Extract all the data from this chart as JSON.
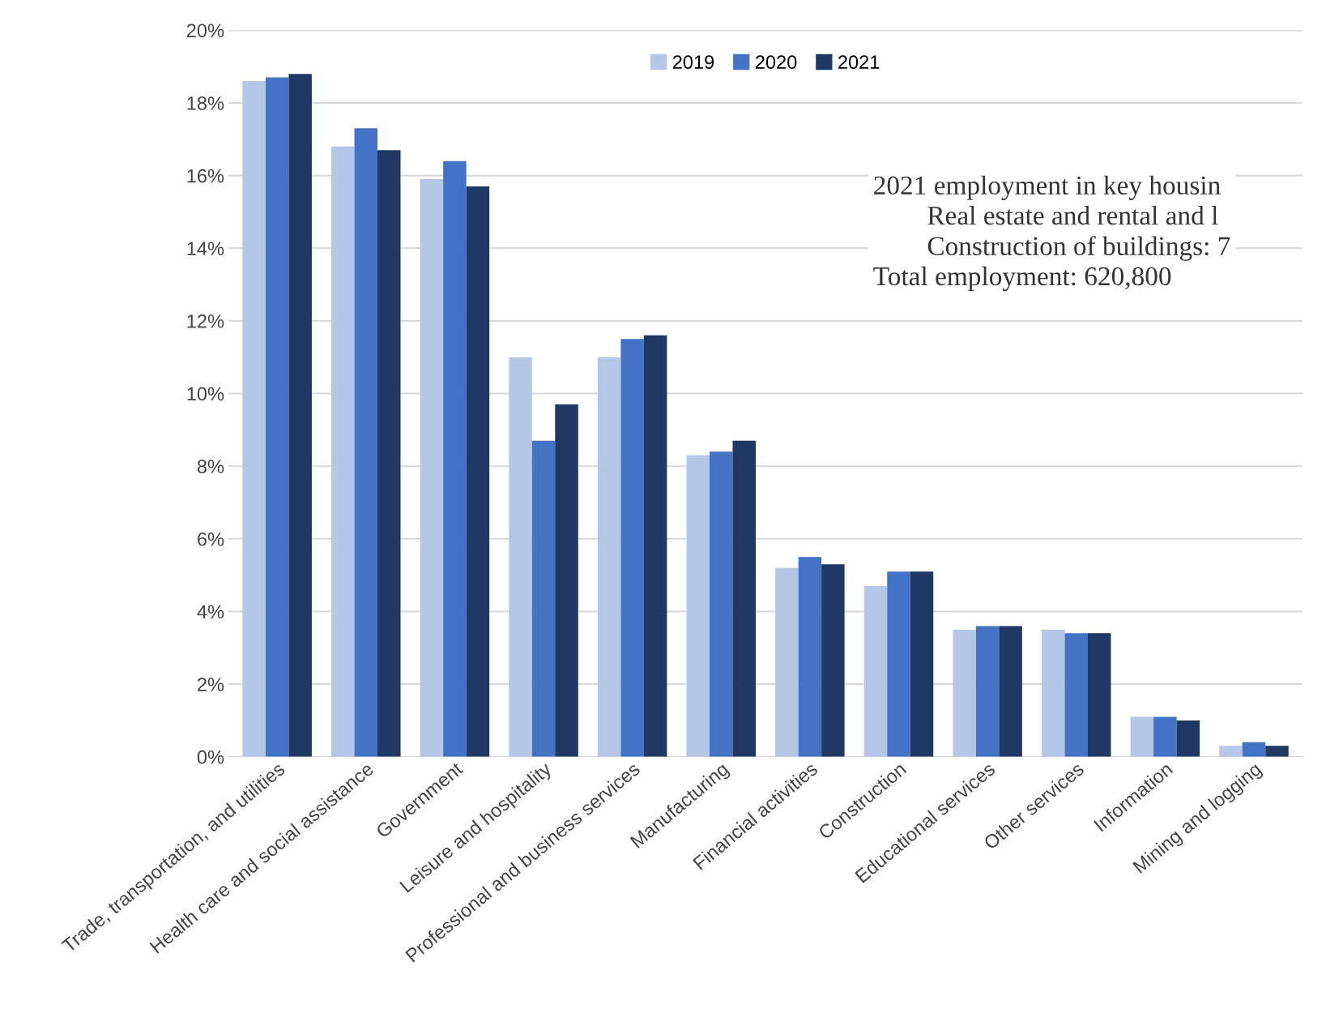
{
  "chart_data": {
    "type": "bar",
    "categories": [
      "Trade, transportation, and utilities",
      "Health care and social assistance",
      "Government",
      "Leisure and hospitality",
      "Professional and business services",
      "Manufacturing",
      "Financial activities",
      "Construction",
      "Educational services",
      "Other services",
      "Information",
      "Mining and logging"
    ],
    "series": [
      {
        "name": "2019",
        "color": "#b4c7e7",
        "values": [
          18.6,
          16.8,
          15.9,
          11.0,
          11.0,
          8.3,
          5.2,
          4.7,
          3.5,
          3.5,
          1.1,
          0.3
        ]
      },
      {
        "name": "2020",
        "color": "#4472c4",
        "values": [
          18.7,
          17.3,
          16.4,
          8.7,
          11.5,
          8.4,
          5.5,
          5.1,
          3.6,
          3.4,
          1.1,
          0.4
        ]
      },
      {
        "name": "2021",
        "color": "#203864",
        "values": [
          18.8,
          16.7,
          15.7,
          9.7,
          11.6,
          8.7,
          5.3,
          5.1,
          3.6,
          3.4,
          1.0,
          0.3
        ]
      }
    ],
    "ylim": [
      0,
      20
    ],
    "yticks": [
      {
        "value": 0,
        "label": "0%"
      },
      {
        "value": 2,
        "label": "2%"
      },
      {
        "value": 4,
        "label": "4%"
      },
      {
        "value": 6,
        "label": "6%"
      },
      {
        "value": 8,
        "label": "8%"
      },
      {
        "value": 10,
        "label": "10%"
      },
      {
        "value": 12,
        "label": "12%"
      },
      {
        "value": 14,
        "label": "14%"
      },
      {
        "value": 16,
        "label": "16%"
      },
      {
        "value": 18,
        "label": "18%"
      },
      {
        "value": 20,
        "label": "20%"
      }
    ],
    "grid": "y",
    "legend": "top",
    "annotations": [
      "2021 employment in key housin\n        Real estate and rental and l\n        Construction of buildings: 7\nTotal employment: 620,800"
    ]
  }
}
